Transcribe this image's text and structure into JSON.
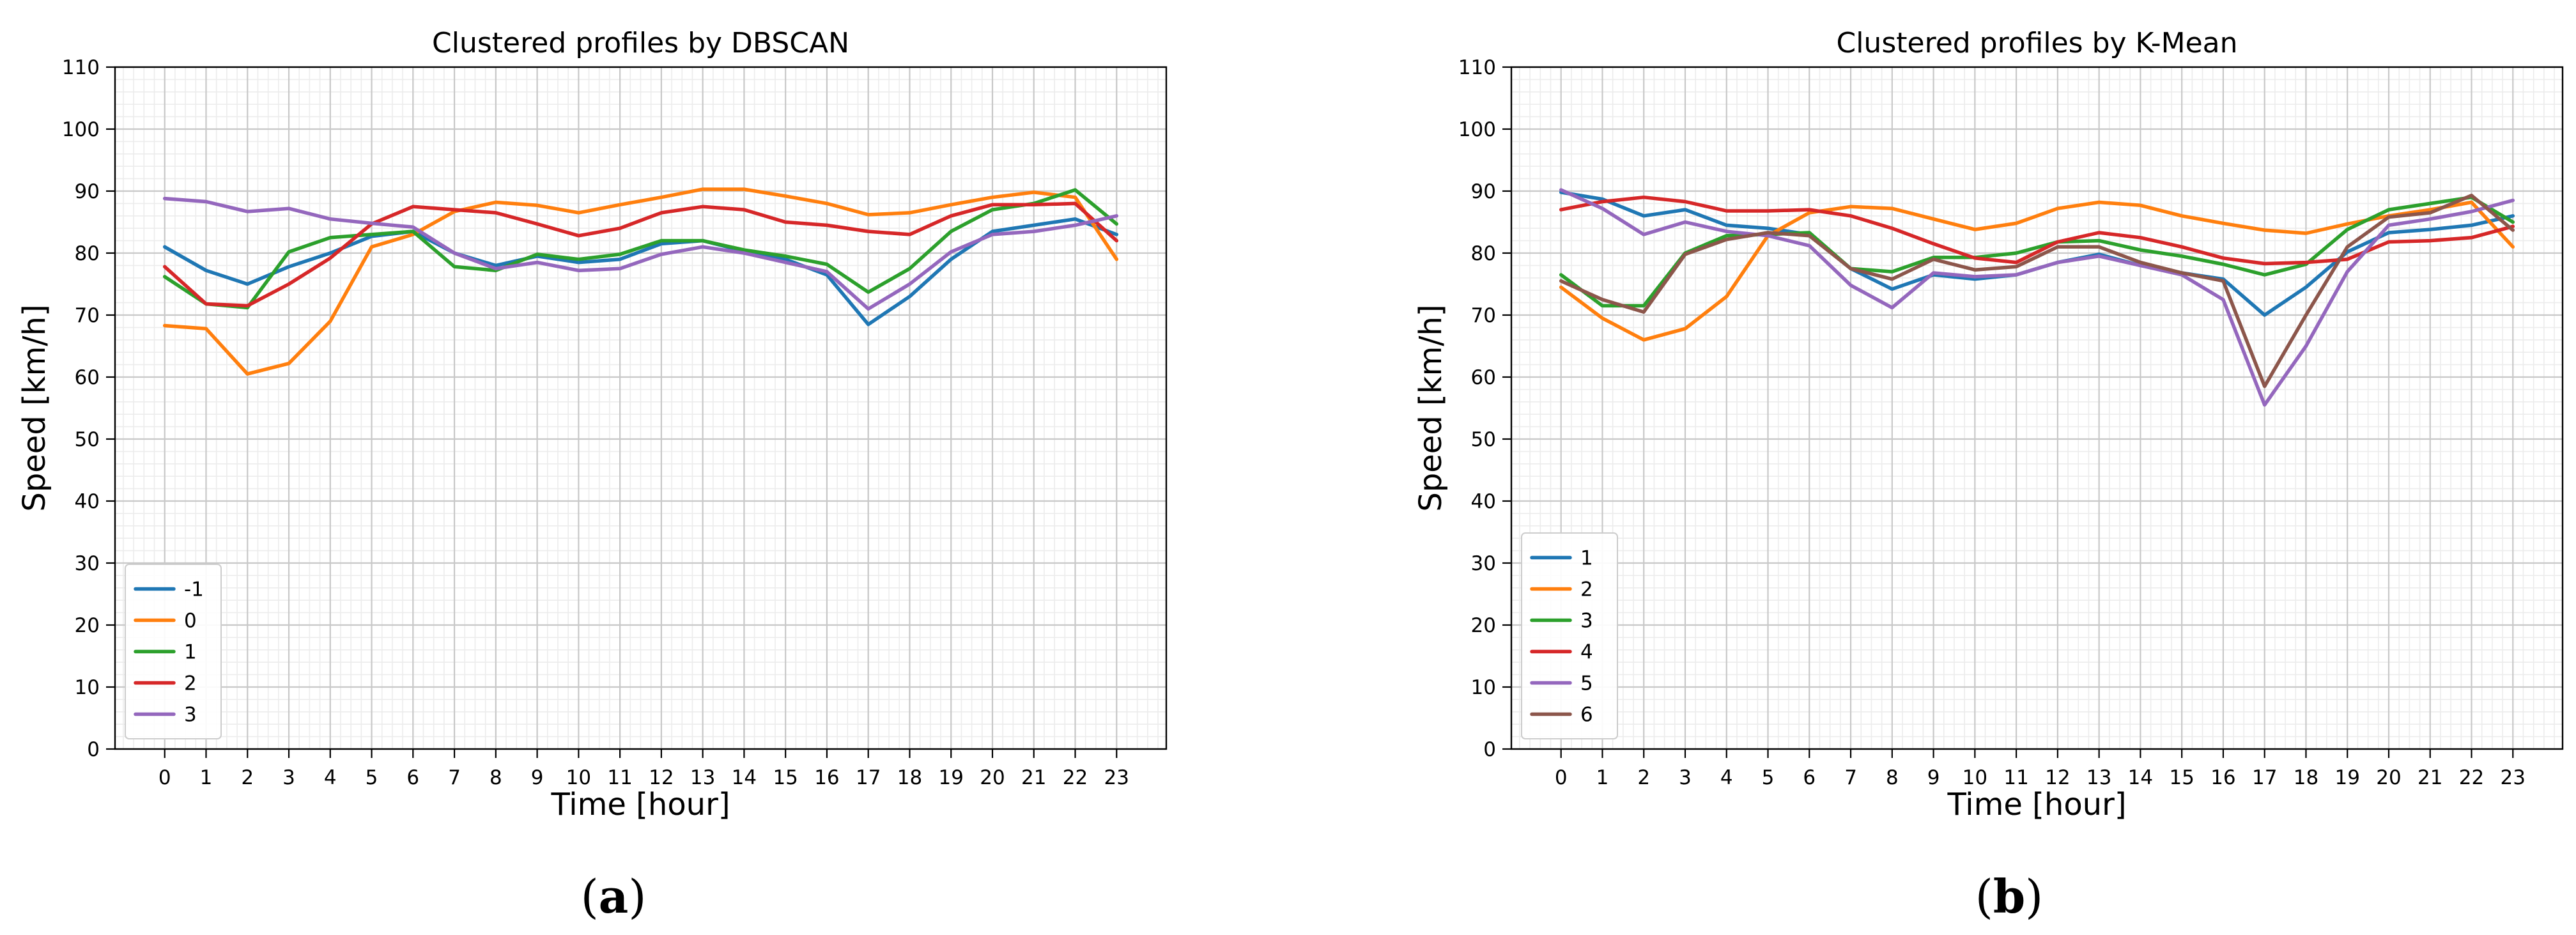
{
  "figure": {
    "panel_a_caption": {
      "open": "(",
      "letter": "a",
      "close": ")"
    },
    "panel_b_caption": {
      "open": "(",
      "letter": "b",
      "close": ")"
    }
  },
  "colors": {
    "tab_blue": "#1f77b4",
    "tab_orange": "#ff7f0e",
    "tab_green": "#2ca02c",
    "tab_red": "#d62728",
    "tab_purple": "#9467bd",
    "tab_brown": "#8c564b"
  },
  "chart_data": [
    {
      "type": "line",
      "title": "Clustered profiles by DBSCAN",
      "xlabel": "Time [hour]",
      "ylabel": "Speed [km/h]",
      "x": [
        0,
        1,
        2,
        3,
        4,
        5,
        6,
        7,
        8,
        9,
        10,
        11,
        12,
        13,
        14,
        15,
        16,
        17,
        18,
        19,
        20,
        21,
        22,
        23
      ],
      "xticks": [
        "0",
        "1",
        "2",
        "3",
        "4",
        "5",
        "6",
        "7",
        "8",
        "9",
        "10",
        "11",
        "12",
        "13",
        "14",
        "15",
        "16",
        "17",
        "18",
        "19",
        "20",
        "21",
        "22",
        "23"
      ],
      "xlim": [
        -1.2,
        24.2
      ],
      "ylim": [
        0,
        110
      ],
      "yticks": [
        "0",
        "10",
        "20",
        "30",
        "40",
        "50",
        "60",
        "70",
        "80",
        "90",
        "100",
        "110"
      ],
      "grid": true,
      "legend_location": "lower-left",
      "series": [
        {
          "name": "-1",
          "color": "#1f77b4",
          "values": [
            81,
            77.2,
            75,
            77.8,
            80,
            82.7,
            83.5,
            80,
            78,
            79.5,
            78.5,
            79,
            81.5,
            82,
            80.3,
            79,
            76.5,
            68.5,
            73,
            79,
            83.5,
            84.5,
            85.5,
            83
          ]
        },
        {
          "name": "0",
          "color": "#ff7f0e",
          "values": [
            68.3,
            67.8,
            60.5,
            62.2,
            69,
            81,
            83,
            86.7,
            88.2,
            87.7,
            86.5,
            87.8,
            89,
            90.3,
            90.3,
            89.2,
            88,
            86.2,
            86.5,
            87.8,
            89,
            89.8,
            89,
            79
          ]
        },
        {
          "name": "1",
          "color": "#2ca02c",
          "values": [
            76.2,
            71.8,
            71.2,
            80.2,
            82.5,
            83,
            83.5,
            77.8,
            77.2,
            79.8,
            79,
            79.8,
            82,
            82,
            80.5,
            79.5,
            78.2,
            73.7,
            77.5,
            83.5,
            87,
            88,
            90.2,
            84.7
          ]
        },
        {
          "name": "2",
          "color": "#d62728",
          "values": [
            77.8,
            71.8,
            71.5,
            75,
            79.2,
            84.7,
            87.5,
            87,
            86.5,
            84.7,
            82.8,
            84,
            86.5,
            87.5,
            87,
            85,
            84.5,
            83.5,
            83,
            86,
            87.8,
            87.8,
            88,
            82
          ]
        },
        {
          "name": "3",
          "color": "#9467bd",
          "values": [
            88.8,
            88.3,
            86.7,
            87.2,
            85.5,
            84.8,
            84.2,
            80,
            77.5,
            78.5,
            77.2,
            77.5,
            79.8,
            81,
            80,
            78.5,
            77,
            71,
            75,
            80.2,
            83,
            83.5,
            84.5,
            86
          ]
        }
      ]
    },
    {
      "type": "line",
      "title": "Clustered profiles by K-Mean",
      "xlabel": "Time [hour]",
      "ylabel": "Speed [km/h]",
      "x": [
        0,
        1,
        2,
        3,
        4,
        5,
        6,
        7,
        8,
        9,
        10,
        11,
        12,
        13,
        14,
        15,
        16,
        17,
        18,
        19,
        20,
        21,
        22,
        23
      ],
      "xticks": [
        "0",
        "1",
        "2",
        "3",
        "4",
        "5",
        "6",
        "7",
        "8",
        "9",
        "10",
        "11",
        "12",
        "13",
        "14",
        "15",
        "16",
        "17",
        "18",
        "19",
        "20",
        "21",
        "22",
        "23"
      ],
      "xlim": [
        -1.2,
        24.2
      ],
      "ylim": [
        0,
        110
      ],
      "yticks": [
        "0",
        "10",
        "20",
        "30",
        "40",
        "50",
        "60",
        "70",
        "80",
        "90",
        "100",
        "110"
      ],
      "grid": true,
      "legend_location": "lower-left",
      "series": [
        {
          "name": "1",
          "color": "#1f77b4",
          "values": [
            89.8,
            88.7,
            86,
            87,
            84.5,
            84,
            83,
            77.5,
            74.2,
            76.5,
            75.8,
            76.5,
            78.5,
            79.8,
            78,
            76.8,
            75.8,
            70,
            74.5,
            80.2,
            83.3,
            83.8,
            84.5,
            86
          ]
        },
        {
          "name": "2",
          "color": "#ff7f0e",
          "values": [
            74.5,
            69.5,
            66,
            67.8,
            73,
            82.8,
            86.5,
            87.5,
            87.2,
            85.5,
            83.8,
            84.8,
            87.2,
            88.2,
            87.7,
            86,
            84.8,
            83.7,
            83.2,
            84.7,
            86,
            87,
            88.2,
            81
          ]
        },
        {
          "name": "3",
          "color": "#2ca02c",
          "values": [
            76.5,
            71.5,
            71.5,
            80,
            82.8,
            83,
            83.3,
            77.5,
            77,
            79.3,
            79.3,
            80,
            81.8,
            82,
            80.5,
            79.5,
            78.2,
            76.5,
            78.2,
            83.8,
            87,
            88,
            89,
            85
          ]
        },
        {
          "name": "4",
          "color": "#d62728",
          "values": [
            87,
            88.3,
            89,
            88.3,
            86.8,
            86.8,
            87,
            86,
            84,
            81.5,
            79.2,
            78.5,
            81.8,
            83.3,
            82.5,
            81,
            79.2,
            78.3,
            78.5,
            79,
            81.8,
            82,
            82.5,
            84.3
          ]
        },
        {
          "name": "5",
          "color": "#9467bd",
          "values": [
            90.2,
            87.2,
            83,
            85,
            83.5,
            82.8,
            81.2,
            74.8,
            71.2,
            76.8,
            76.2,
            76.5,
            78.5,
            79.5,
            78,
            76.5,
            72.5,
            55.5,
            65,
            77,
            84.5,
            85.5,
            86.7,
            88.5
          ]
        },
        {
          "name": "6",
          "color": "#8c564b",
          "values": [
            75.5,
            72.5,
            70.5,
            79.8,
            82.2,
            83.3,
            82.8,
            77.5,
            75.8,
            79,
            77.3,
            77.8,
            81,
            81,
            78.5,
            76.8,
            75.5,
            58.5,
            70,
            81,
            85.8,
            86.5,
            89.3,
            83.7
          ]
        }
      ]
    }
  ]
}
